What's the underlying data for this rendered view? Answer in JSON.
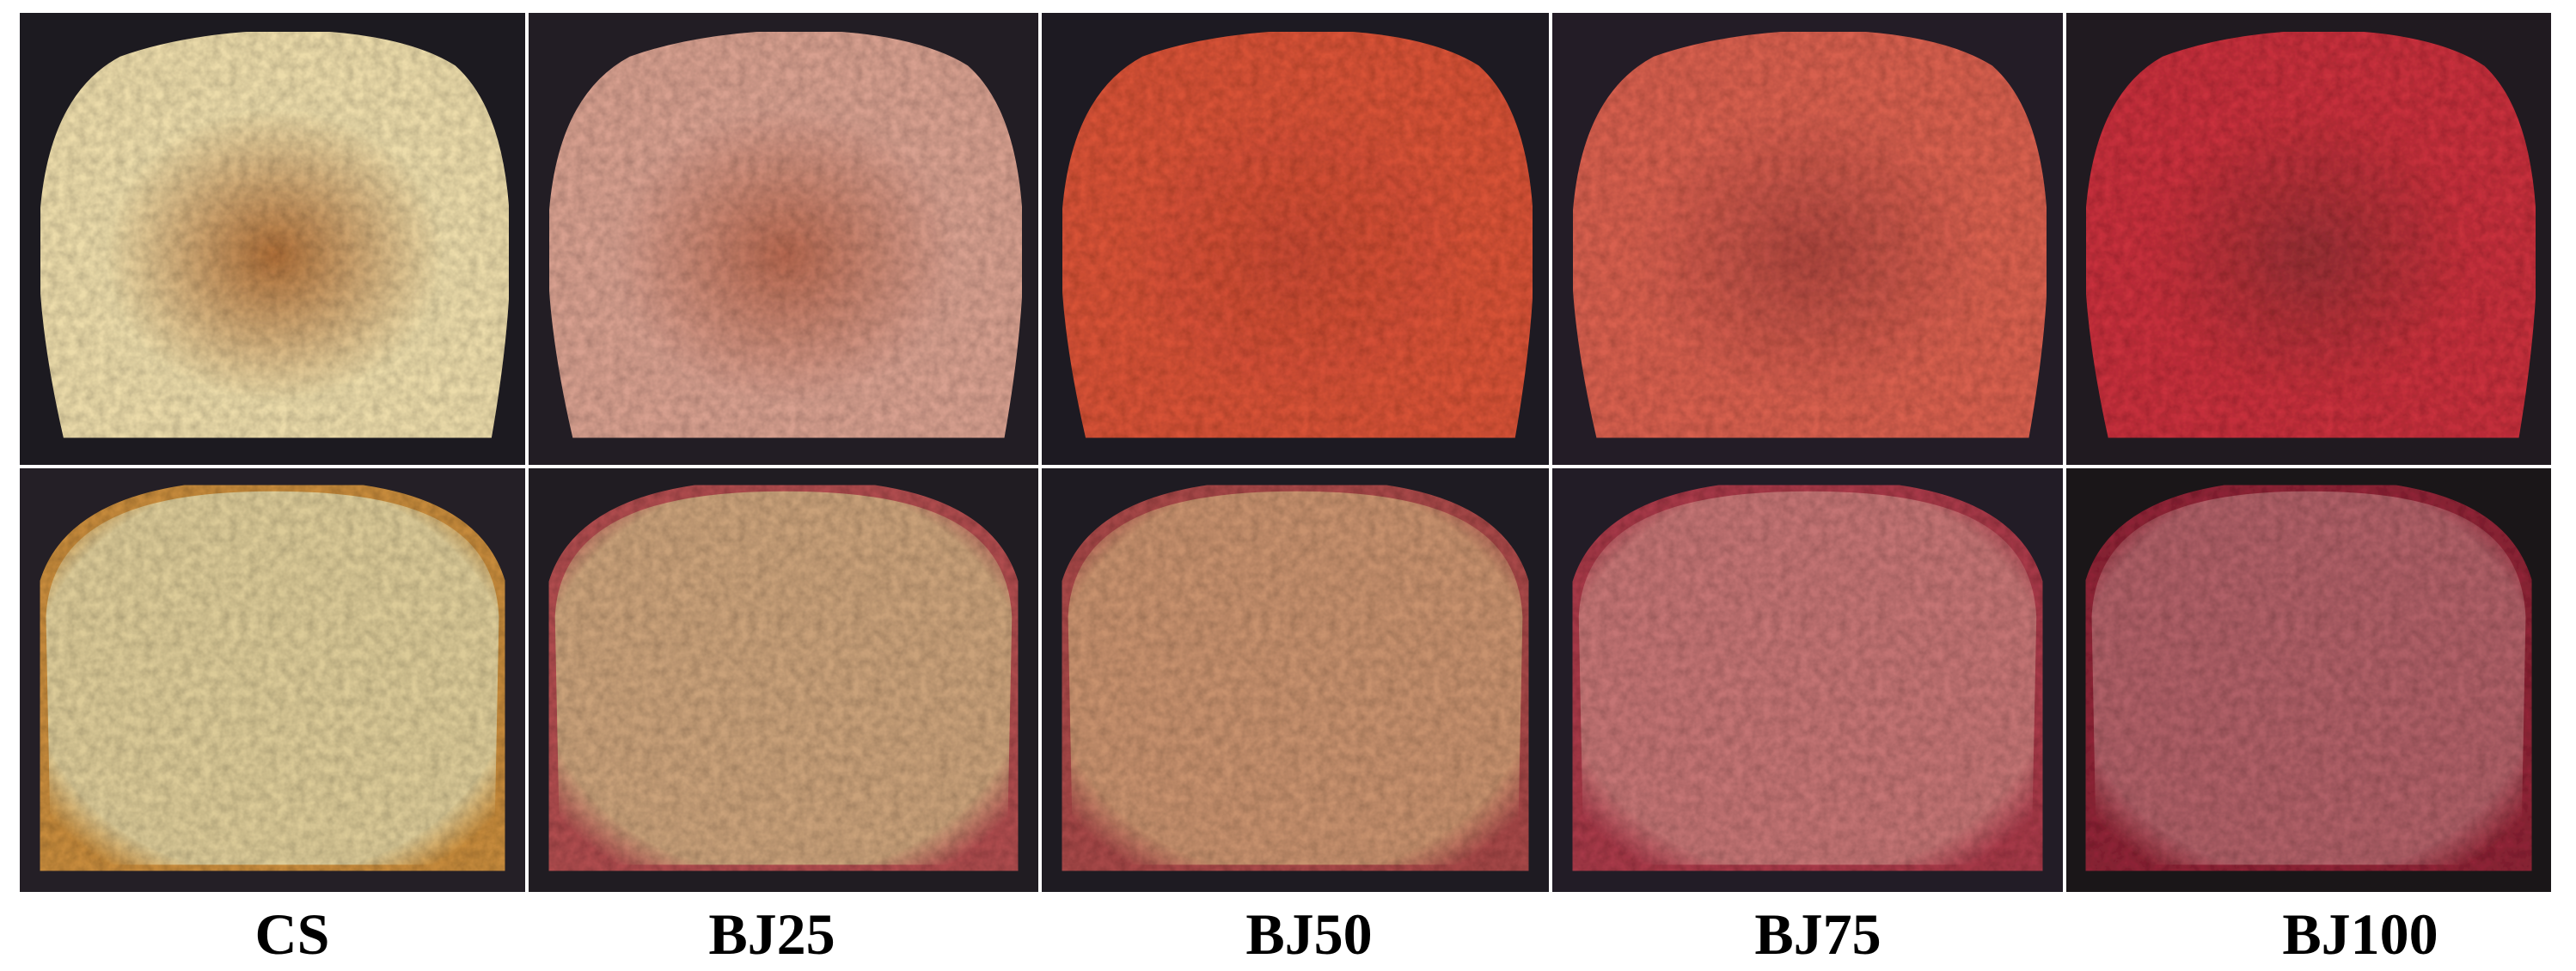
{
  "labels": [
    "CS",
    "BJ25",
    "BJ50",
    "BJ75",
    "BJ100"
  ]
}
